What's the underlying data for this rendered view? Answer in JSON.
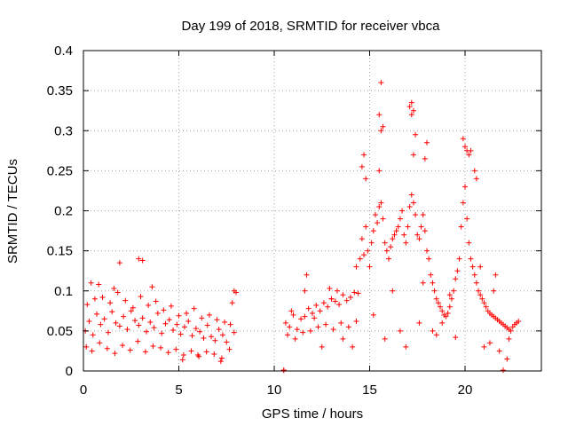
{
  "chart_data": {
    "type": "scatter",
    "title": "Day 199 of 2018, SRMTID for receiver vbca",
    "xlabel": "GPS time / hours",
    "ylabel": "SRMTID / TECUs",
    "xlim": [
      0,
      24
    ],
    "ylim": [
      0,
      0.4
    ],
    "xticks": [
      0,
      5,
      10,
      15,
      20
    ],
    "xtick_labels": [
      "0",
      "5",
      "10",
      "15",
      "20"
    ],
    "yticks": [
      0,
      0.05,
      0.1,
      0.15,
      0.2,
      0.25,
      0.3,
      0.35,
      0.4
    ],
    "ytick_labels": [
      "0",
      "0.05",
      "0.1",
      "0.15",
      "0.2",
      "0.25",
      "0.3",
      "0.35",
      "0.4"
    ],
    "grid": true,
    "marker": "+",
    "series": [
      {
        "name": "SRMTID",
        "color": "#ff0000",
        "x": [
          0.1,
          0.3,
          0.5,
          0.7,
          0.9,
          1.1,
          1.3,
          1.5,
          1.7,
          1.9,
          2.1,
          2.3,
          2.5,
          2.7,
          2.9,
          3.1,
          3.3,
          3.5,
          3.7,
          3.9,
          4.1,
          4.3,
          4.5,
          4.7,
          4.9,
          5.1,
          5.3,
          5.5,
          5.7,
          5.9,
          6.1,
          6.3,
          6.5,
          6.7,
          6.9,
          7.1,
          7.3,
          7.5,
          7.7,
          7.9,
          0.2,
          0.6,
          1.0,
          1.4,
          1.8,
          2.2,
          2.6,
          3.0,
          3.4,
          3.8,
          4.2,
          4.6,
          5.0,
          5.4,
          5.8,
          6.2,
          6.6,
          7.0,
          7.4,
          7.8,
          0.15,
          0.45,
          0.85,
          1.25,
          1.65,
          2.05,
          2.45,
          2.85,
          3.25,
          3.65,
          4.05,
          4.45,
          4.85,
          5.25,
          5.65,
          6.05,
          6.45,
          6.85,
          7.25,
          7.65,
          1.9,
          2.9,
          3.1,
          0.4,
          0.8,
          1.6,
          7.9,
          8.0,
          3.6,
          5.2,
          6.0,
          7.2,
          10.6,
          10.8,
          11.0,
          11.2,
          11.4,
          11.6,
          11.8,
          12.0,
          12.2,
          12.4,
          12.6,
          12.8,
          13.0,
          13.2,
          13.4,
          13.6,
          13.8,
          14.0,
          14.2,
          14.4,
          10.7,
          11.1,
          11.5,
          11.9,
          12.3,
          12.7,
          13.1,
          13.5,
          13.9,
          14.3,
          11.7,
          12.9,
          13.3,
          10.9,
          12.1,
          14.5,
          14.6,
          14.7,
          14.8,
          14.9,
          15.0,
          15.1,
          15.2,
          15.3,
          15.4,
          15.5,
          15.6,
          15.7,
          15.8,
          15.9,
          16.0,
          16.1,
          16.2,
          16.3,
          16.4,
          16.5,
          16.6,
          16.7,
          16.8,
          16.9,
          17.0,
          17.1,
          17.2,
          17.3,
          17.4,
          17.5,
          17.6,
          17.7,
          17.8,
          17.9,
          18.0,
          18.1,
          18.2,
          18.3,
          18.4,
          18.5,
          18.6,
          18.7,
          18.8,
          18.9,
          19.0,
          19.1,
          19.2,
          19.3,
          19.4,
          19.5,
          19.6,
          19.7,
          19.8,
          19.9,
          20.0,
          20.1,
          20.2,
          20.3,
          20.4,
          20.5,
          20.6,
          20.7,
          20.8,
          20.9,
          21.0,
          21.1,
          21.2,
          21.3,
          21.4,
          21.5,
          21.6,
          21.7,
          21.8,
          21.9,
          22.0,
          22.1,
          22.2,
          22.3,
          22.4,
          22.5,
          22.6,
          22.7,
          22.8,
          14.6,
          14.7,
          14.8,
          15.5,
          15.6,
          15.6,
          15.7,
          15.5,
          17.1,
          17.2,
          17.3,
          17.2,
          17.4,
          17.3,
          17.9,
          18.0,
          19.9,
          20.0,
          20.1,
          20.2,
          20.5,
          20.6,
          20.3,
          15.2,
          15.8,
          16.6,
          17.6,
          18.3,
          18.5,
          21.0,
          21.3,
          21.8,
          22.3,
          16.2,
          17.8,
          19.2,
          20.8,
          21.5,
          10.5,
          10.5,
          13.0,
          14.3,
          22.0,
          22.2,
          21.6,
          11.6,
          12.5,
          13.6,
          14.1,
          19.5,
          18.8,
          16.9
        ],
        "y": [
          0.05,
          0.062,
          0.045,
          0.071,
          0.058,
          0.065,
          0.048,
          0.074,
          0.06,
          0.056,
          0.068,
          0.052,
          0.075,
          0.063,
          0.057,
          0.066,
          0.049,
          0.061,
          0.054,
          0.072,
          0.047,
          0.059,
          0.064,
          0.051,
          0.058,
          0.046,
          0.055,
          0.062,
          0.044,
          0.053,
          0.049,
          0.041,
          0.057,
          0.043,
          0.038,
          0.052,
          0.045,
          0.036,
          0.058,
          0.048,
          0.083,
          0.09,
          0.092,
          0.085,
          0.098,
          0.088,
          0.079,
          0.093,
          0.082,
          0.087,
          0.076,
          0.081,
          0.069,
          0.072,
          0.078,
          0.066,
          0.07,
          0.064,
          0.061,
          0.085,
          0.03,
          0.025,
          0.035,
          0.028,
          0.022,
          0.032,
          0.026,
          0.037,
          0.024,
          0.031,
          0.029,
          0.023,
          0.027,
          0.02,
          0.025,
          0.018,
          0.024,
          0.021,
          0.016,
          0.027,
          0.135,
          0.14,
          0.138,
          0.11,
          0.108,
          0.103,
          0.1,
          0.098,
          0.105,
          0.014,
          0.02,
          0.012,
          0.06,
          0.055,
          0.07,
          0.052,
          0.065,
          0.068,
          0.078,
          0.072,
          0.082,
          0.075,
          0.085,
          0.08,
          0.09,
          0.087,
          0.083,
          0.095,
          0.088,
          0.092,
          0.098,
          0.097,
          0.045,
          0.04,
          0.048,
          0.05,
          0.055,
          0.058,
          0.052,
          0.06,
          0.055,
          0.062,
          0.12,
          0.103,
          0.1,
          0.075,
          0.066,
          0.14,
          0.165,
          0.145,
          0.18,
          0.15,
          0.13,
          0.16,
          0.175,
          0.195,
          0.185,
          0.205,
          0.21,
          0.19,
          0.16,
          0.15,
          0.14,
          0.155,
          0.165,
          0.17,
          0.175,
          0.18,
          0.19,
          0.2,
          0.17,
          0.16,
          0.18,
          0.205,
          0.22,
          0.21,
          0.195,
          0.17,
          0.165,
          0.18,
          0.195,
          0.175,
          0.15,
          0.14,
          0.12,
          0.11,
          0.1,
          0.09,
          0.085,
          0.08,
          0.075,
          0.07,
          0.068,
          0.072,
          0.08,
          0.09,
          0.1,
          0.115,
          0.125,
          0.14,
          0.18,
          0.21,
          0.23,
          0.19,
          0.16,
          0.14,
          0.13,
          0.12,
          0.11,
          0.1,
          0.095,
          0.09,
          0.085,
          0.08,
          0.075,
          0.072,
          0.07,
          0.068,
          0.066,
          0.064,
          0.062,
          0.06,
          0.058,
          0.056,
          0.054,
          0.052,
          0.05,
          0.055,
          0.058,
          0.06,
          0.062,
          0.255,
          0.27,
          0.24,
          0.32,
          0.36,
          0.3,
          0.305,
          0.25,
          0.33,
          0.335,
          0.325,
          0.32,
          0.295,
          0.27,
          0.265,
          0.285,
          0.29,
          0.28,
          0.275,
          0.27,
          0.25,
          0.24,
          0.275,
          0.07,
          0.04,
          0.05,
          0.06,
          0.05,
          0.045,
          0.03,
          0.035,
          0.025,
          0.04,
          0.1,
          0.11,
          0.095,
          0.13,
          0.1,
          0.001,
          0.001,
          0.09,
          0.13,
          0.001,
          0.015,
          0.12,
          0.1,
          0.03,
          0.04,
          0.03,
          0.042,
          0.06,
          0.03
        ]
      }
    ]
  }
}
